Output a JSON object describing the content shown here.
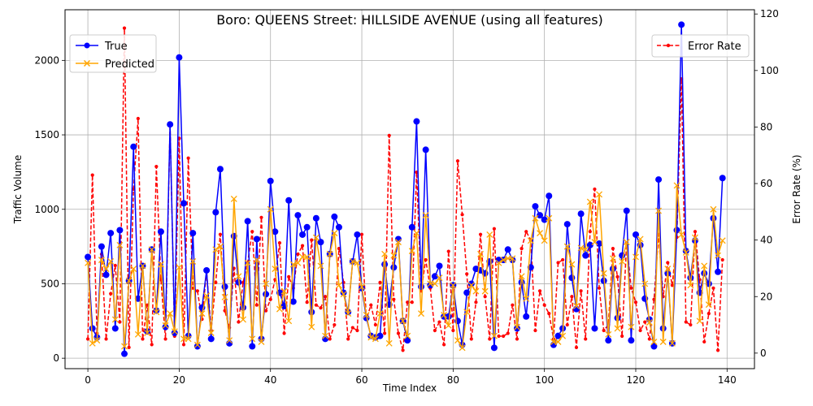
{
  "chart_data": {
    "type": "line",
    "title": "Boro: QUEENS Street: HILLSIDE AVENUE (using all features)",
    "xlabel": "Time Index",
    "ylabel": "Traffic Volume",
    "y2label": "Error Rate (%)",
    "xlim": [
      -5,
      146
    ],
    "ylim": [
      -70,
      2340
    ],
    "y2lim": [
      -5.5,
      121.5
    ],
    "xticks": [
      0,
      20,
      40,
      60,
      80,
      100,
      120,
      140
    ],
    "yticks": [
      0,
      500,
      1000,
      1500,
      2000
    ],
    "y2ticks": [
      0,
      20,
      40,
      60,
      80,
      100,
      120
    ],
    "grid": true,
    "legend_left": [
      "True",
      "Predicted"
    ],
    "legend_right": [
      "Error Rate"
    ],
    "colors": {
      "true": "#0000ff",
      "predicted": "#ffa500",
      "error": "#ff0000"
    },
    "series": [
      {
        "name": "True",
        "axis": "left",
        "color": "#0000ff",
        "values": [
          680,
          200,
          140,
          750,
          560,
          840,
          200,
          860,
          30,
          520,
          1420,
          400,
          620,
          180,
          730,
          320,
          850,
          210,
          1570,
          170,
          2020,
          1040,
          150,
          840,
          80,
          340,
          590,
          130,
          980,
          1270,
          480,
          100,
          820,
          510,
          340,
          920,
          80,
          800,
          130,
          430,
          1190,
          850,
          440,
          350,
          1060,
          380,
          960,
          830,
          880,
          310,
          940,
          780,
          130,
          700,
          950,
          880,
          440,
          310,
          650,
          830,
          470,
          270,
          150,
          140,
          150,
          630,
          360,
          610,
          800,
          250,
          120,
          880,
          1590,
          480,
          1400,
          490,
          550,
          620,
          280,
          280,
          490,
          250,
          90,
          440,
          500,
          600,
          590,
          570,
          650,
          70,
          660,
          660,
          730,
          660,
          200,
          510,
          280,
          610,
          1020,
          960,
          930,
          1090,
          90,
          150,
          200,
          900,
          540,
          330,
          970,
          690,
          760,
          200,
          770,
          520,
          120,
          600,
          270,
          690,
          990,
          120,
          830,
          760,
          400,
          260,
          80,
          1200,
          200,
          570,
          100,
          860,
          2240,
          720,
          540,
          790,
          440,
          570,
          500,
          940,
          580,
          1210
        ]
      },
      {
        "name": "Predicted",
        "axis": "left",
        "color": "#ffa500",
        "values": [
          640,
          100,
          120,
          660,
          600,
          650,
          260,
          760,
          80,
          520,
          600,
          160,
          620,
          170,
          730,
          310,
          630,
          220,
          300,
          180,
          610,
          130,
          130,
          650,
          90,
          300,
          420,
          170,
          730,
          750,
          410,
          120,
          1070,
          550,
          260,
          640,
          130,
          660,
          110,
          500,
          1000,
          600,
          330,
          450,
          250,
          630,
          640,
          680,
          680,
          210,
          810,
          620,
          150,
          700,
          840,
          490,
          430,
          300,
          650,
          640,
          480,
          290,
          140,
          130,
          300,
          700,
          100,
          690,
          780,
          250,
          150,
          720,
          840,
          300,
          960,
          500,
          500,
          540,
          290,
          220,
          490,
          120,
          70,
          310,
          490,
          450,
          700,
          450,
          830,
          150,
          640,
          660,
          670,
          670,
          210,
          550,
          400,
          790,
          940,
          840,
          790,
          940,
          110,
          110,
          150,
          750,
          630,
          350,
          740,
          730,
          1050,
          780,
          1100,
          570,
          160,
          670,
          200,
          650,
          780,
          210,
          680,
          800,
          500,
          240,
          110,
          990,
          110,
          600,
          100,
          1160,
          830,
          710,
          490,
          810,
          250,
          620,
          360,
          1000,
          690,
          790
        ]
      },
      {
        "name": "Error Rate",
        "axis": "right",
        "color": "#ff0000",
        "values": [
          5,
          63,
          7,
          35,
          5,
          21,
          31,
          11,
          115,
          2,
          58,
          83,
          5,
          17,
          3,
          66,
          26,
          5,
          81,
          6,
          76,
          3,
          69,
          23,
          22,
          12,
          29,
          8,
          25,
          42,
          15,
          9,
          30,
          11,
          25,
          32,
          43,
          17,
          48,
          15,
          19,
          26,
          39,
          7,
          27,
          23,
          35,
          38,
          18,
          40,
          17,
          16,
          20,
          5,
          10,
          37,
          25,
          5,
          9,
          8,
          42,
          12,
          17,
          10,
          25,
          7,
          77,
          19,
          7,
          1,
          18,
          18,
          64,
          22,
          33,
          23,
          8,
          11,
          3,
          36,
          8,
          68,
          49,
          28,
          5,
          18,
          42,
          20,
          5,
          44,
          6,
          6,
          7,
          17,
          5,
          37,
          43,
          40,
          8,
          22,
          17,
          14,
          5,
          32,
          33,
          10,
          20,
          2,
          22,
          5,
          43,
          58,
          23,
          8,
          10,
          37,
          27,
          6,
          39,
          23,
          18,
          8,
          11,
          5,
          19,
          42,
          20,
          32,
          24,
          41,
          97,
          11,
          10,
          43,
          26,
          4,
          14,
          23,
          1,
          33
        ]
      }
    ]
  }
}
